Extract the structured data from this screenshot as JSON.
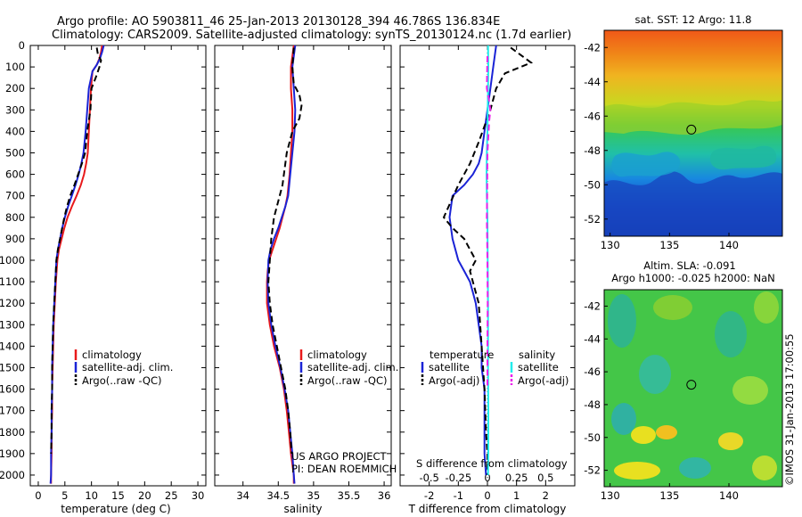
{
  "header": {
    "title_line1": "Argo profile: AO 5903811_46 25-Jan-2013 20130128_394 46.786S 136.834E",
    "title_line2": "Climatology: CARS2009. Satellite-adjusted climatology: synTS_20130124.nc (1.7d earlier)"
  },
  "colors": {
    "climatology": "#e8191b",
    "satellite": "#1a23d6",
    "argo": "#000000",
    "sal_satellite": "#22ecec",
    "sal_argo": "#ec22ec"
  },
  "depth_axis": {
    "ylim": [
      0,
      2050
    ],
    "ticks": [
      0,
      100,
      200,
      300,
      400,
      500,
      600,
      700,
      800,
      900,
      1000,
      1100,
      1200,
      1300,
      1400,
      1500,
      1600,
      1700,
      1800,
      1900,
      2000
    ]
  },
  "chart_data": [
    {
      "type": "line",
      "name": "temperature-profile",
      "xlabel": "temperature (deg C)",
      "ylabel": "",
      "xlim": [
        -1.5,
        31.5
      ],
      "ylim": [
        0,
        2050
      ],
      "x_ticks": [
        "0",
        "5",
        "10",
        "15",
        "20",
        "25",
        "30"
      ],
      "x_tick_values": [
        0,
        5,
        10,
        15,
        20,
        25,
        30
      ],
      "legend": [
        "climatology",
        "satellite-adj. clim.",
        "Argo(..raw -QC)"
      ],
      "legend_position": "lower-center",
      "series": [
        {
          "name": "climatology",
          "style": "solid",
          "color": "#e8191b",
          "x": [
            12.0,
            11.8,
            11.5,
            11.0,
            10.2,
            9.9,
            9.7,
            9.5,
            9.3,
            9.0,
            8.6,
            8.0,
            7.2,
            6.3,
            5.5,
            4.9,
            4.4,
            3.9,
            3.6,
            3.3,
            3.1,
            2.9,
            2.8,
            2.7,
            2.6,
            2.6,
            2.5,
            2.5,
            2.4,
            2.4
          ],
          "y": [
            0,
            30,
            60,
            90,
            120,
            200,
            300,
            400,
            500,
            550,
            600,
            650,
            700,
            750,
            800,
            850,
            900,
            950,
            1000,
            1100,
            1200,
            1300,
            1400,
            1500,
            1600,
            1700,
            1800,
            1900,
            2000,
            2040
          ]
        },
        {
          "name": "satellite-adj. clim.",
          "style": "solid",
          "color": "#1a23d6",
          "x": [
            12.3,
            12.0,
            11.6,
            11.0,
            10.2,
            9.5,
            9.2,
            8.9,
            8.5,
            8.1,
            7.6,
            7.0,
            6.3,
            5.6,
            5.0,
            4.5,
            4.1,
            3.7,
            3.4,
            3.2,
            3.0,
            2.8,
            2.7,
            2.6,
            2.6,
            2.5,
            2.5,
            2.4,
            2.4,
            2.3
          ],
          "y": [
            0,
            30,
            60,
            90,
            120,
            200,
            300,
            400,
            500,
            550,
            600,
            650,
            700,
            750,
            800,
            850,
            900,
            950,
            1000,
            1100,
            1200,
            1300,
            1400,
            1500,
            1600,
            1700,
            1800,
            1900,
            2000,
            2040
          ]
        },
        {
          "name": "Argo(..raw -QC)",
          "style": "dashed",
          "color": "#000000",
          "x": [
            11.0,
            11.2,
            11.8,
            11.5,
            10.8,
            10.0,
            9.8,
            9.2,
            8.8,
            8.2,
            7.5,
            6.8,
            6.0,
            5.4,
            4.9,
            4.5,
            4.1,
            3.7,
            3.4,
            3.2,
            3.0,
            2.8,
            2.7,
            2.6,
            2.6,
            2.5,
            2.5,
            2.4
          ],
          "y": [
            10,
            40,
            70,
            100,
            150,
            200,
            300,
            400,
            500,
            550,
            600,
            650,
            700,
            750,
            800,
            850,
            900,
            950,
            1000,
            1100,
            1200,
            1300,
            1400,
            1500,
            1600,
            1700,
            1800,
            1900
          ]
        }
      ]
    },
    {
      "type": "line",
      "name": "salinity-profile",
      "xlabel": "salinity",
      "ylabel": "",
      "xlim": [
        33.6,
        36.1
      ],
      "ylim": [
        0,
        2050
      ],
      "x_ticks": [
        "34",
        "34.5",
        "35",
        "35.5",
        "36"
      ],
      "x_tick_values": [
        34,
        34.5,
        35,
        35.5,
        36
      ],
      "legend": [
        "climatology",
        "satellite-adj. clim.",
        "Argo(..raw -QC)"
      ],
      "legend_position": "lower-center",
      "annotation": [
        "US ARGO PROJECT",
        "PI: DEAN ROEMMICH"
      ],
      "series": [
        {
          "name": "climatology",
          "style": "solid",
          "color": "#e8191b",
          "x": [
            34.72,
            34.7,
            34.68,
            34.68,
            34.7,
            34.7,
            34.68,
            34.66,
            34.63,
            34.6,
            34.56,
            34.52,
            34.47,
            34.42,
            34.37,
            34.35,
            34.34,
            34.34,
            34.38,
            34.44,
            34.52,
            34.58,
            34.62,
            34.65,
            34.68,
            34.7,
            34.72,
            34.72
          ],
          "y": [
            0,
            50,
            100,
            200,
            300,
            400,
            500,
            600,
            700,
            750,
            800,
            850,
            900,
            950,
            1000,
            1050,
            1100,
            1200,
            1300,
            1400,
            1500,
            1600,
            1700,
            1800,
            1900,
            1950,
            2000,
            2040
          ]
        },
        {
          "name": "satellite-adj. clim.",
          "style": "solid",
          "color": "#1a23d6",
          "x": [
            34.74,
            34.72,
            34.7,
            34.72,
            34.74,
            34.73,
            34.7,
            34.67,
            34.64,
            34.6,
            34.55,
            34.5,
            34.44,
            34.39,
            34.36,
            34.35,
            34.36,
            34.4,
            34.46,
            34.53,
            34.59,
            34.64,
            34.67,
            34.7,
            34.72,
            34.73
          ],
          "y": [
            0,
            50,
            100,
            200,
            300,
            400,
            500,
            600,
            700,
            750,
            800,
            850,
            900,
            950,
            1000,
            1100,
            1200,
            1300,
            1400,
            1500,
            1600,
            1700,
            1800,
            1900,
            2000,
            2040
          ]
        },
        {
          "name": "Argo(..raw -QC)",
          "style": "dashed",
          "color": "#000000",
          "x": [
            34.72,
            34.7,
            34.72,
            34.8,
            34.83,
            34.8,
            34.7,
            34.62,
            34.56,
            34.48,
            34.44,
            34.4,
            34.38,
            34.36,
            34.38,
            34.42,
            34.48,
            34.54,
            34.6,
            34.64,
            34.67,
            34.69
          ],
          "y": [
            10,
            100,
            180,
            230,
            280,
            340,
            400,
            500,
            650,
            750,
            800,
            900,
            1000,
            1100,
            1200,
            1300,
            1400,
            1500,
            1600,
            1700,
            1800,
            1900
          ]
        }
      ]
    },
    {
      "type": "line",
      "name": "difference-profile",
      "xlabel": "T difference from climatology",
      "ylabel": "",
      "xlim": [
        -3.0,
        3.0
      ],
      "ylim": [
        0,
        2050
      ],
      "x_ticks": [
        "-2",
        "-1",
        "0",
        "1",
        "2"
      ],
      "x_tick_values": [
        -2,
        -1,
        0,
        1,
        2
      ],
      "top_axis_label": "S difference from climatology",
      "top_ticks": [
        "-0.5",
        "-0.25",
        "0",
        "0.25",
        "0.5"
      ],
      "top_tick_values": [
        -0.5,
        -0.25,
        0,
        0.25,
        0.5
      ],
      "legend_temperature": {
        "title": "temperature",
        "items": [
          "satellite",
          "Argo(-adj)"
        ]
      },
      "legend_salinity": {
        "title": "salinity",
        "items": [
          "satellite",
          "Argo(-adj)"
        ]
      },
      "series": [
        {
          "name": "temperature satellite",
          "style": "solid",
          "color": "#1a23d6",
          "x": [
            0.3,
            0.2,
            0.1,
            0.0,
            -0.1,
            -0.2,
            -0.3,
            -0.5,
            -0.8,
            -1.2,
            -1.3,
            -1.2,
            -1.0,
            -0.8,
            -0.6,
            -0.5,
            -0.4,
            -0.3,
            -0.2,
            -0.2,
            -0.1,
            -0.1,
            -0.1,
            -0.1,
            -0.05
          ],
          "y": [
            0,
            100,
            200,
            300,
            400,
            500,
            550,
            600,
            650,
            700,
            800,
            900,
            1000,
            1050,
            1100,
            1150,
            1200,
            1300,
            1400,
            1500,
            1600,
            1700,
            1800,
            1900,
            2000
          ]
        },
        {
          "name": "temperature Argo(-adj)",
          "style": "dashed",
          "color": "#000000",
          "x": [
            0.8,
            1.5,
            0.6,
            0.3,
            0.1,
            -0.3,
            -0.6,
            -1.0,
            -1.5,
            -1.2,
            -0.8,
            -0.4,
            -0.6,
            -0.3,
            -0.2,
            -0.1,
            -0.05,
            0.0,
            0.0
          ],
          "y": [
            10,
            80,
            130,
            200,
            300,
            450,
            550,
            650,
            800,
            850,
            900,
            1000,
            1050,
            1200,
            1400,
            1600,
            1800,
            1900,
            2000
          ]
        },
        {
          "name": "salinity satellite",
          "style": "solid",
          "color": "#22ecec",
          "x": [
            0.02,
            0.03,
            0.02,
            0.01,
            0.0,
            -0.02,
            -0.03,
            -0.02,
            0.0,
            0.01,
            0.02,
            0.02,
            0.03,
            0.03,
            0.02
          ],
          "y": [
            0,
            100,
            200,
            300,
            400,
            500,
            600,
            700,
            800,
            1000,
            1200,
            1500,
            1700,
            1900,
            2000
          ]
        },
        {
          "name": "salinity Argo(-adj)",
          "style": "dashed",
          "color": "#ec22ec",
          "x": [
            0.0,
            -0.02,
            0.05,
            0.1,
            0.06,
            0.0,
            -0.01,
            -0.02,
            -0.01,
            0.0,
            0.01,
            0.0,
            0.0
          ],
          "y": [
            50,
            200,
            250,
            300,
            350,
            500,
            700,
            800,
            900,
            1000,
            1200,
            1400,
            1600
          ]
        }
      ]
    },
    {
      "type": "heatmap",
      "name": "sst-map",
      "title": "sat. SST: 12 Argo: 11.8",
      "xlim": [
        129.5,
        144.5
      ],
      "ylim": [
        -53,
        -41
      ],
      "x_ticks": [
        "130",
        "135",
        "140"
      ],
      "x_tick_values": [
        130,
        135,
        140
      ],
      "y_ticks": [
        "-42",
        "-44",
        "-46",
        "-48",
        "-50",
        "-52"
      ],
      "y_tick_values": [
        -42,
        -44,
        -46,
        -48,
        -50,
        -52
      ],
      "marker": {
        "lon": 136.834,
        "lat": -46.786
      }
    },
    {
      "type": "heatmap",
      "name": "sla-map",
      "title": "Altim. SLA: -0.091",
      "subtitle": "Argo h1000: -0.025 h2000: NaN",
      "xlim": [
        129.5,
        144.5
      ],
      "ylim": [
        -53,
        -41
      ],
      "x_ticks": [
        "130",
        "135",
        "140"
      ],
      "x_tick_values": [
        130,
        135,
        140
      ],
      "y_ticks": [
        "-42",
        "-44",
        "-46",
        "-48",
        "-50",
        "-52"
      ],
      "y_tick_values": [
        -42,
        -44,
        -46,
        -48,
        -50,
        -52
      ],
      "marker": {
        "lon": 136.834,
        "lat": -46.786
      }
    }
  ],
  "footer": {
    "credit": "©IMOS 31-Jan-2013 17:00:55"
  }
}
